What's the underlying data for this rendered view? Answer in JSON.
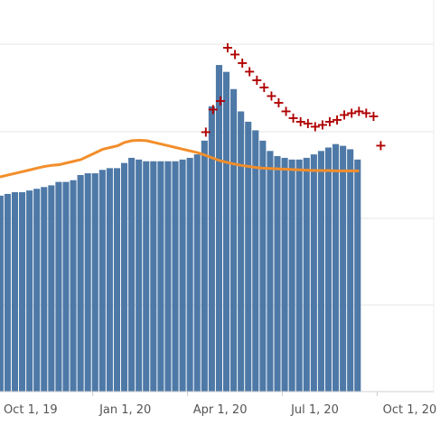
{
  "chart_data": {
    "type": "bar",
    "x_axis": {
      "ticks": [
        {
          "label": "Oct 1, 19",
          "week": 0
        },
        {
          "label": "Jan 1, 20",
          "week": 13
        },
        {
          "label": "Apr 1, 20",
          "week": 26
        },
        {
          "label": "Jul 1, 20",
          "week": 39
        },
        {
          "label": "Oct 1, 20",
          "week": 52
        }
      ]
    },
    "grid": true,
    "series": [
      {
        "type": "bar",
        "color": "#4e79a7",
        "values": [
          57,
          57.5,
          58,
          58,
          58.5,
          59,
          59.5,
          60,
          61,
          61,
          61.5,
          63,
          63.5,
          63.5,
          64.5,
          65,
          65,
          66.5,
          68,
          67.5,
          67,
          67,
          67,
          67,
          67,
          67.5,
          68,
          69,
          73,
          83,
          95,
          93,
          88,
          81.5,
          78.5,
          76,
          73,
          70,
          68.5,
          68,
          67.5,
          67.5,
          68,
          69,
          70,
          71,
          72,
          71.5,
          70.5,
          67.5
        ]
      },
      {
        "type": "line",
        "color": "#f28e2b",
        "values": [
          62.5,
          63,
          63.5,
          64,
          64.5,
          65,
          65.5,
          65.8,
          66,
          66.5,
          67,
          67.5,
          68.5,
          69.5,
          70.5,
          71,
          71.5,
          72.5,
          73,
          73.1,
          73,
          72.5,
          72,
          71.5,
          71,
          70.5,
          70,
          69.5,
          68.8,
          68,
          67.2,
          66.7,
          66.2,
          65.8,
          65.5,
          65.2,
          65,
          64.9,
          64.8,
          64.7,
          64.6,
          64.5,
          64.4,
          64.3,
          64.3,
          64.3,
          64.2,
          64.2,
          64.2,
          64.2
        ]
      },
      {
        "type": "scatter",
        "marker": "+",
        "color": "#b00000",
        "start_week": 28,
        "values": [
          75.5,
          82,
          84.5,
          100,
          98,
          95.5,
          93,
          90.5,
          88.5,
          86,
          84,
          81.5,
          79.5,
          78.5,
          78,
          77,
          77.5,
          78.5,
          79,
          80.5,
          81,
          81.5,
          81,
          80,
          71.5
        ]
      }
    ]
  }
}
